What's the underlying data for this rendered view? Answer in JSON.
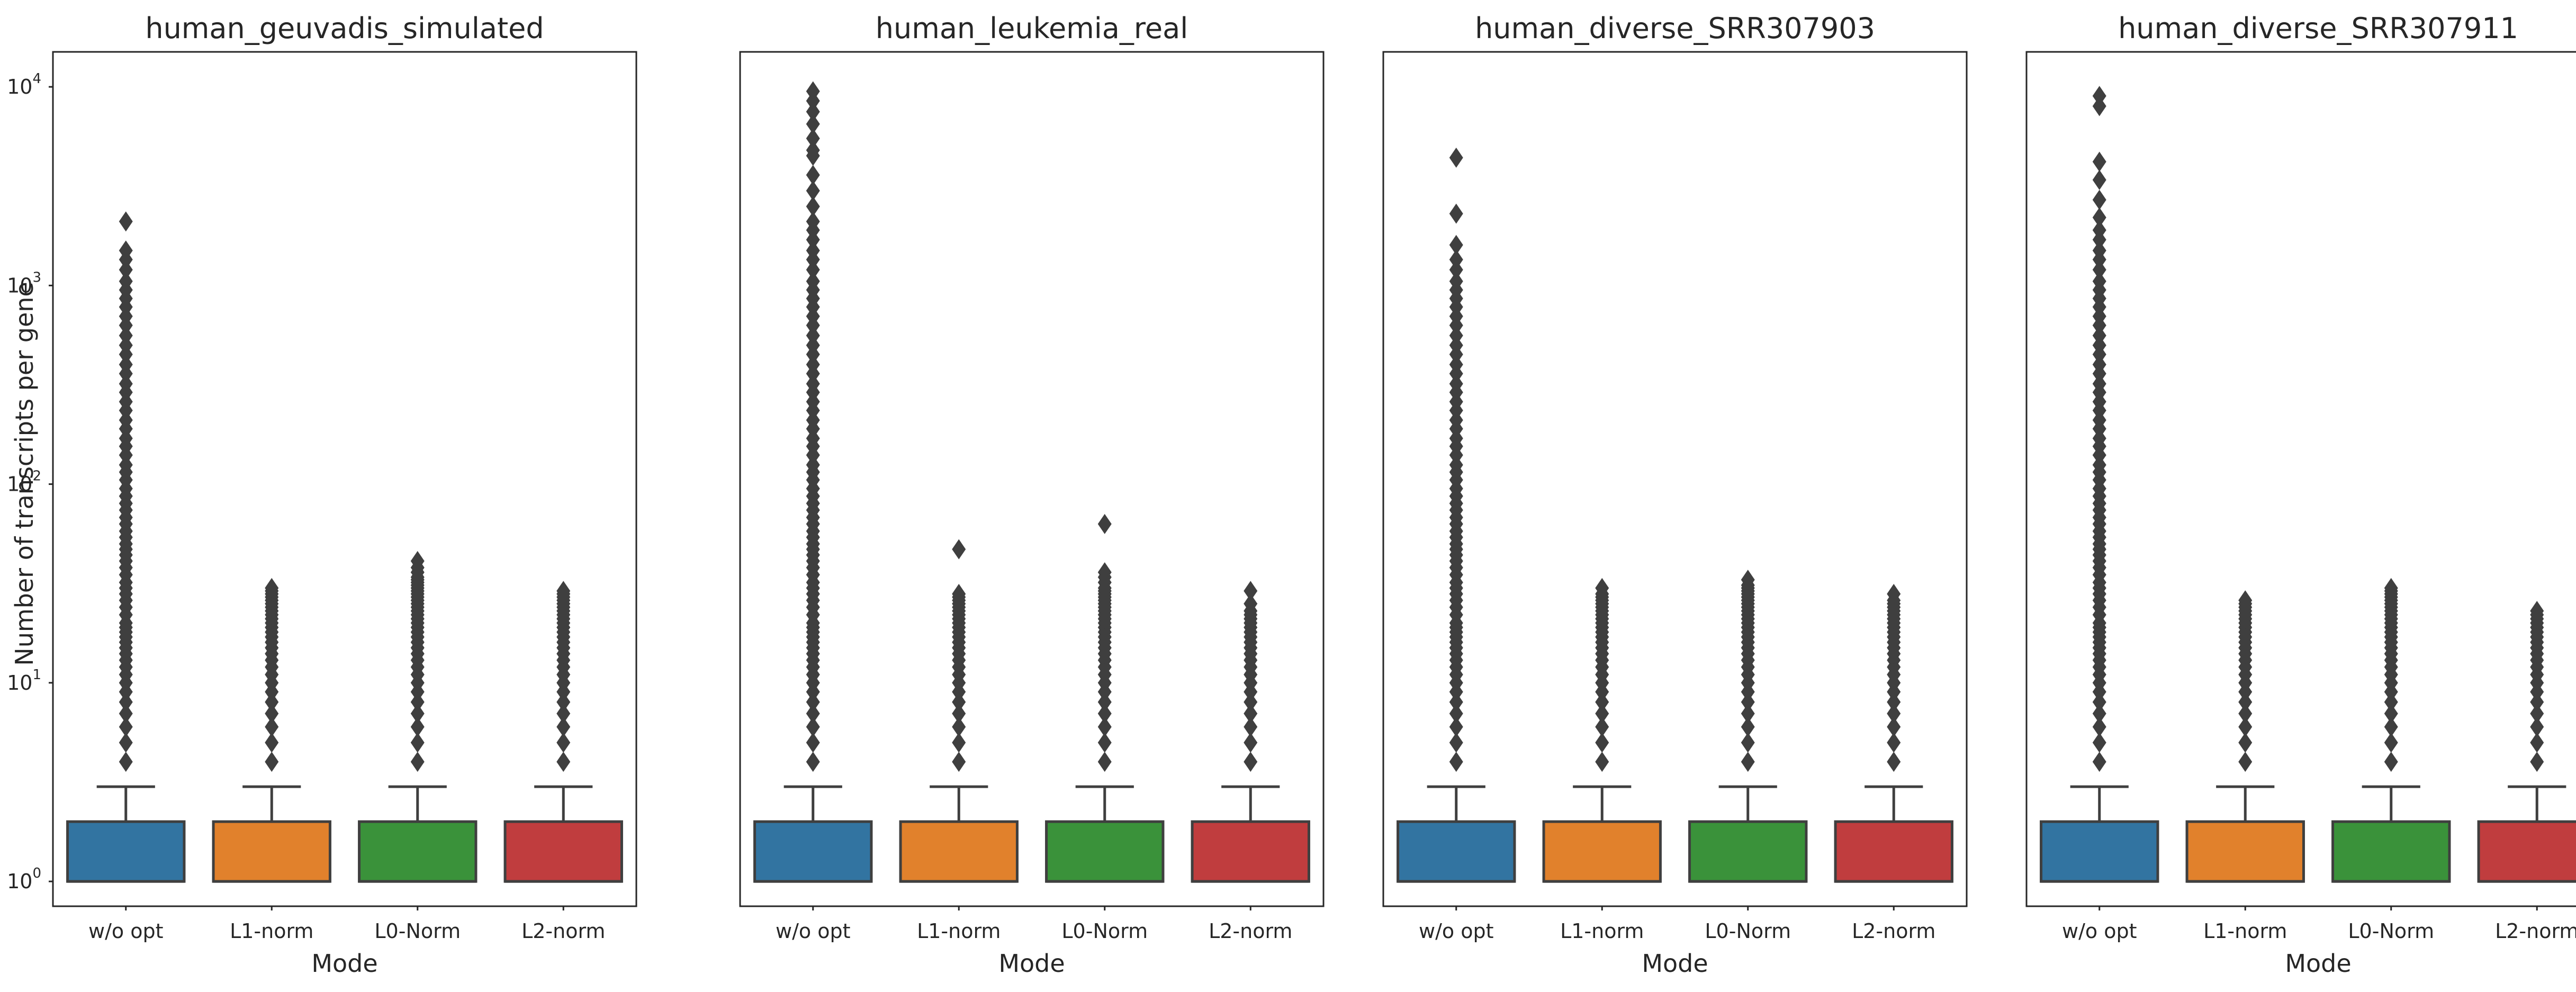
{
  "figure": {
    "ylabel": "Number of transcripts per gene"
  },
  "chart_data": {
    "type": "box",
    "yscale": "log",
    "ylim": [
      0.75,
      15000
    ],
    "ytick_values": [
      1,
      10,
      100,
      1000,
      10000
    ],
    "ytick_labels": [
      {
        "base": "10",
        "exp": "0"
      },
      {
        "base": "10",
        "exp": "1"
      },
      {
        "base": "10",
        "exp": "2"
      },
      {
        "base": "10",
        "exp": "3"
      },
      {
        "base": "10",
        "exp": "4"
      }
    ],
    "xlabel": "Mode",
    "categories": [
      "w/o opt",
      "L1-norm",
      "L0-Norm",
      "L2-norm"
    ],
    "colors": [
      "#3274a1",
      "#e1812c",
      "#3a923a",
      "#c03d3e"
    ],
    "line_color": "#3f3f3f",
    "panels": [
      {
        "title": "human_geuvadis_simulated",
        "show_yaxis": true,
        "boxes": [
          {
            "q1": 1,
            "median": 1,
            "q3": 2,
            "whislo": 1,
            "whishi": 3,
            "fliers": [
              4,
              5,
              6,
              7,
              8,
              9,
              10,
              11,
              12,
              13,
              14,
              15,
              16,
              17,
              18,
              19,
              20,
              22,
              24,
              26,
              28,
              30,
              32,
              35,
              38,
              41,
              44,
              47,
              50,
              54,
              58,
              63,
              68,
              74,
              80,
              87,
              95,
              105,
              115,
              125,
              140,
              155,
              170,
              190,
              210,
              235,
              260,
              290,
              320,
              360,
              400,
              450,
              500,
              560,
              630,
              700,
              780,
              860,
              950,
              1050,
              1200,
              1350,
              1500,
              2100
            ]
          },
          {
            "q1": 1,
            "median": 1,
            "q3": 2,
            "whislo": 1,
            "whishi": 3,
            "fliers": [
              4,
              5,
              6,
              7,
              8,
              9,
              10,
              11,
              12,
              13,
              14,
              15,
              16,
              17,
              18,
              19,
              20,
              21,
              22,
              23,
              24,
              25,
              26,
              27,
              28,
              29,
              30
            ]
          },
          {
            "q1": 1,
            "median": 1,
            "q3": 2,
            "whislo": 1,
            "whishi": 3,
            "fliers": [
              4,
              5,
              6,
              7,
              8,
              9,
              10,
              11,
              12,
              13,
              14,
              15,
              16,
              17,
              18,
              19,
              20,
              21,
              22,
              23,
              24,
              25,
              26,
              27,
              28,
              29,
              30,
              31,
              32,
              33,
              34,
              36,
              38,
              41
            ]
          },
          {
            "q1": 1,
            "median": 1,
            "q3": 2,
            "whislo": 1,
            "whishi": 3,
            "fliers": [
              4,
              5,
              6,
              7,
              8,
              9,
              10,
              11,
              12,
              13,
              14,
              15,
              16,
              17,
              18,
              19,
              20,
              21,
              22,
              23,
              24,
              25,
              26,
              27,
              28,
              29
            ]
          }
        ]
      },
      {
        "title": "human_leukemia_real",
        "show_yaxis": false,
        "boxes": [
          {
            "q1": 1,
            "median": 1,
            "q3": 2,
            "whislo": 1,
            "whishi": 3,
            "fliers": [
              4,
              5,
              6,
              7,
              8,
              9,
              10,
              11,
              12,
              13,
              14,
              15,
              16,
              17,
              18,
              19,
              20,
              22,
              24,
              26,
              28,
              30,
              32,
              35,
              38,
              41,
              44,
              47,
              50,
              54,
              58,
              63,
              68,
              74,
              80,
              87,
              95,
              105,
              115,
              125,
              140,
              155,
              170,
              190,
              210,
              235,
              260,
              290,
              320,
              360,
              400,
              450,
              500,
              560,
              630,
              700,
              780,
              860,
              950,
              1050,
              1200,
              1350,
              1500,
              1700,
              1900,
              2100,
              2500,
              3000,
              3600,
              4500,
              4800,
              5500,
              6500,
              7500,
              8500,
              9500
            ]
          },
          {
            "q1": 1,
            "median": 1,
            "q3": 2,
            "whislo": 1,
            "whishi": 3,
            "fliers": [
              4,
              5,
              6,
              7,
              8,
              9,
              10,
              11,
              12,
              13,
              14,
              15,
              16,
              17,
              18,
              19,
              20,
              21,
              22,
              23,
              24,
              25,
              26,
              27,
              28,
              47
            ]
          },
          {
            "q1": 1,
            "median": 1,
            "q3": 2,
            "whislo": 1,
            "whishi": 3,
            "fliers": [
              4,
              5,
              6,
              7,
              8,
              9,
              10,
              11,
              12,
              13,
              14,
              15,
              16,
              17,
              18,
              19,
              20,
              21,
              22,
              23,
              24,
              25,
              26,
              27,
              28,
              29,
              30,
              32,
              34,
              36,
              63
            ]
          },
          {
            "q1": 1,
            "median": 1,
            "q3": 2,
            "whislo": 1,
            "whishi": 3,
            "fliers": [
              4,
              5,
              6,
              7,
              8,
              9,
              10,
              11,
              12,
              13,
              14,
              15,
              16,
              17,
              18,
              19,
              20,
              21,
              22,
              23,
              25,
              29
            ]
          }
        ]
      },
      {
        "title": "human_diverse_SRR307903",
        "show_yaxis": false,
        "boxes": [
          {
            "q1": 1,
            "median": 1,
            "q3": 2,
            "whislo": 1,
            "whishi": 3,
            "fliers": [
              4,
              5,
              6,
              7,
              8,
              9,
              10,
              11,
              12,
              13,
              14,
              15,
              16,
              17,
              18,
              19,
              20,
              22,
              24,
              26,
              28,
              30,
              32,
              35,
              38,
              41,
              44,
              47,
              50,
              54,
              58,
              63,
              68,
              74,
              80,
              87,
              95,
              105,
              115,
              125,
              140,
              155,
              170,
              190,
              210,
              235,
              260,
              290,
              320,
              360,
              400,
              450,
              500,
              560,
              630,
              700,
              780,
              860,
              950,
              1050,
              1200,
              1350,
              1600,
              2300,
              4400
            ]
          },
          {
            "q1": 1,
            "median": 1,
            "q3": 2,
            "whislo": 1,
            "whishi": 3,
            "fliers": [
              4,
              5,
              6,
              7,
              8,
              9,
              10,
              11,
              12,
              13,
              14,
              15,
              16,
              17,
              18,
              19,
              20,
              21,
              22,
              23,
              24,
              25,
              26,
              27,
              28,
              30
            ]
          },
          {
            "q1": 1,
            "median": 1,
            "q3": 2,
            "whislo": 1,
            "whishi": 3,
            "fliers": [
              4,
              5,
              6,
              7,
              8,
              9,
              10,
              11,
              12,
              13,
              14,
              15,
              16,
              17,
              18,
              19,
              20,
              21,
              22,
              23,
              24,
              25,
              26,
              27,
              28,
              29,
              30,
              31,
              33
            ]
          },
          {
            "q1": 1,
            "median": 1,
            "q3": 2,
            "whislo": 1,
            "whishi": 3,
            "fliers": [
              4,
              5,
              6,
              7,
              8,
              9,
              10,
              11,
              12,
              13,
              14,
              15,
              16,
              17,
              18,
              19,
              20,
              21,
              22,
              23,
              24,
              25,
              26,
              28
            ]
          }
        ]
      },
      {
        "title": "human_diverse_SRR307911",
        "show_yaxis": false,
        "boxes": [
          {
            "q1": 1,
            "median": 1,
            "q3": 2,
            "whislo": 1,
            "whishi": 3,
            "fliers": [
              4,
              5,
              6,
              7,
              8,
              9,
              10,
              11,
              12,
              13,
              14,
              15,
              16,
              17,
              18,
              19,
              20,
              22,
              24,
              26,
              28,
              30,
              32,
              35,
              38,
              41,
              44,
              47,
              50,
              54,
              58,
              63,
              68,
              74,
              80,
              87,
              95,
              105,
              115,
              125,
              140,
              155,
              170,
              190,
              210,
              235,
              260,
              290,
              320,
              360,
              400,
              450,
              500,
              560,
              630,
              700,
              780,
              860,
              950,
              1050,
              1200,
              1350,
              1500,
              1700,
              1900,
              2200,
              2700,
              3400,
              4200,
              8000,
              9000
            ]
          },
          {
            "q1": 1,
            "median": 1,
            "q3": 2,
            "whislo": 1,
            "whishi": 3,
            "fliers": [
              4,
              5,
              6,
              7,
              8,
              9,
              10,
              11,
              12,
              13,
              14,
              15,
              16,
              17,
              18,
              19,
              20,
              21,
              22,
              23,
              24,
              25,
              26
            ]
          },
          {
            "q1": 1,
            "median": 1,
            "q3": 2,
            "whislo": 1,
            "whishi": 3,
            "fliers": [
              4,
              5,
              6,
              7,
              8,
              9,
              10,
              11,
              12,
              13,
              14,
              15,
              16,
              17,
              18,
              19,
              20,
              21,
              22,
              23,
              24,
              25,
              26,
              27,
              28,
              29,
              30
            ]
          },
          {
            "q1": 1,
            "median": 1,
            "q3": 2,
            "whislo": 1,
            "whishi": 3,
            "fliers": [
              4,
              5,
              6,
              7,
              8,
              9,
              10,
              11,
              12,
              13,
              14,
              15,
              16,
              17,
              18,
              19,
              20,
              21,
              22,
              23
            ]
          }
        ]
      }
    ]
  }
}
